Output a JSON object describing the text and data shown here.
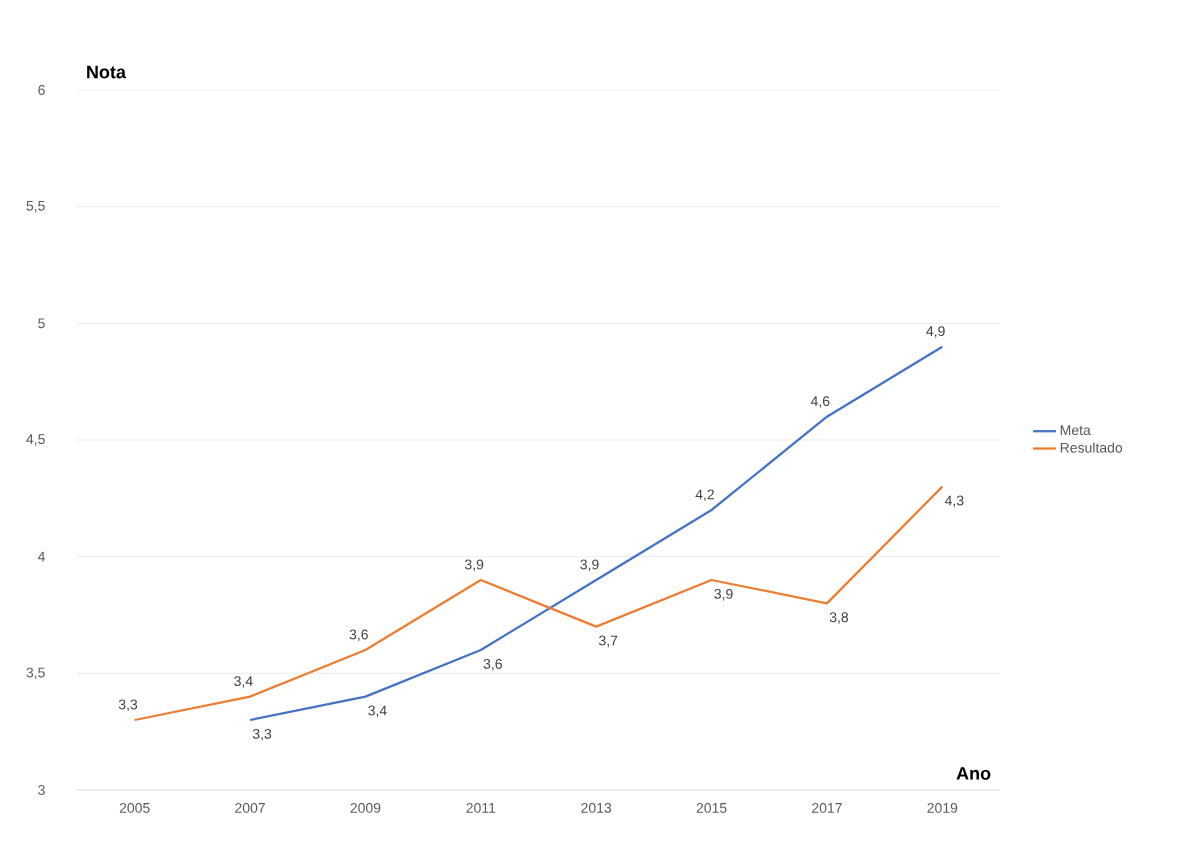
{
  "chart_data": {
    "type": "line",
    "xlabel": "Ano",
    "ylabel": "Nota",
    "categories": [
      "2005",
      "2007",
      "2009",
      "2011",
      "2013",
      "2015",
      "2017",
      "2019"
    ],
    "series": [
      {
        "name": "Meta",
        "color": "#4472c4",
        "values": [
          null,
          3.3,
          3.4,
          3.6,
          3.9,
          4.2,
          4.6,
          4.9
        ],
        "value_labels": [
          null,
          "3,3",
          "3,4",
          "3,6",
          "3,9",
          "4,2",
          "4,6",
          "4,9"
        ]
      },
      {
        "name": "Resultado",
        "color": "#ed7d31",
        "values": [
          3.3,
          3.4,
          3.6,
          3.9,
          3.7,
          3.9,
          3.8,
          4.3
        ],
        "value_labels": [
          "3,3",
          "3,4",
          "3,6",
          "3,9",
          "3,7",
          "3,9",
          "3,8",
          "4,3"
        ]
      }
    ],
    "ylim": [
      3,
      6
    ],
    "yticks": [
      3,
      {
        "value": 3.5,
        "label": "3,5"
      },
      4,
      {
        "value": 4.5,
        "label": "4,5"
      },
      5,
      {
        "value": 5.5,
        "label": "5,5"
      },
      6
    ],
    "grid": "y",
    "legend": "right"
  }
}
